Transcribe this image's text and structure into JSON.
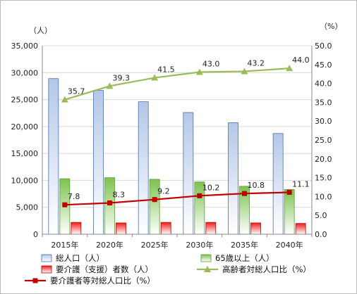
{
  "chart_data": {
    "type": "bar",
    "categories": [
      "2015年",
      "2020年",
      "2025年",
      "2030年",
      "2035年",
      "2040年"
    ],
    "left_axis": {
      "unit": "（人）",
      "ylim": [
        0,
        35000
      ],
      "ticks": [
        "0",
        "5,000",
        "10,000",
        "15,000",
        "20,000",
        "25,000",
        "30,000",
        "35,000"
      ]
    },
    "right_axis": {
      "unit": "（%）",
      "ylim": [
        0,
        50
      ],
      "ticks": [
        "0.0",
        "5.0",
        "10.0",
        "15.0",
        "20.0",
        "25.0",
        "30.0",
        "35.0",
        "40.0",
        "45.0",
        "50.0"
      ]
    },
    "bar_series": [
      {
        "name": "総人口（人）",
        "values": [
          28900,
          26700,
          24600,
          22600,
          20700,
          18700
        ],
        "color": "#4472c4"
      },
      {
        "name": "65歳以上（人）",
        "values": [
          10300,
          10500,
          10200,
          9700,
          8900,
          8300
        ],
        "color": "#70ad47"
      },
      {
        "name": "要介護（支援）者数（人）",
        "values": [
          2200,
          2100,
          2200,
          2200,
          2100,
          2000
        ],
        "color": "#e02020"
      }
    ],
    "line_series": [
      {
        "name": "高齢者対総人口比（%）",
        "values": [
          35.7,
          39.3,
          41.5,
          43.0,
          43.2,
          44.0
        ],
        "labels": [
          "35.7",
          "39.3",
          "41.5",
          "43.0",
          "43.2",
          "44.0"
        ],
        "color": "#9bbb59",
        "marker": "triangle"
      },
      {
        "name": "要介護者等対総人口比（%）",
        "values": [
          7.8,
          8.3,
          9.2,
          10.2,
          10.8,
          11.1
        ],
        "labels": [
          "7.8",
          "8.3",
          "9.2",
          "10.2",
          "10.8",
          "11.1"
        ],
        "color": "#c00000",
        "marker": "square"
      }
    ],
    "grid": true,
    "legend_position": "bottom"
  }
}
